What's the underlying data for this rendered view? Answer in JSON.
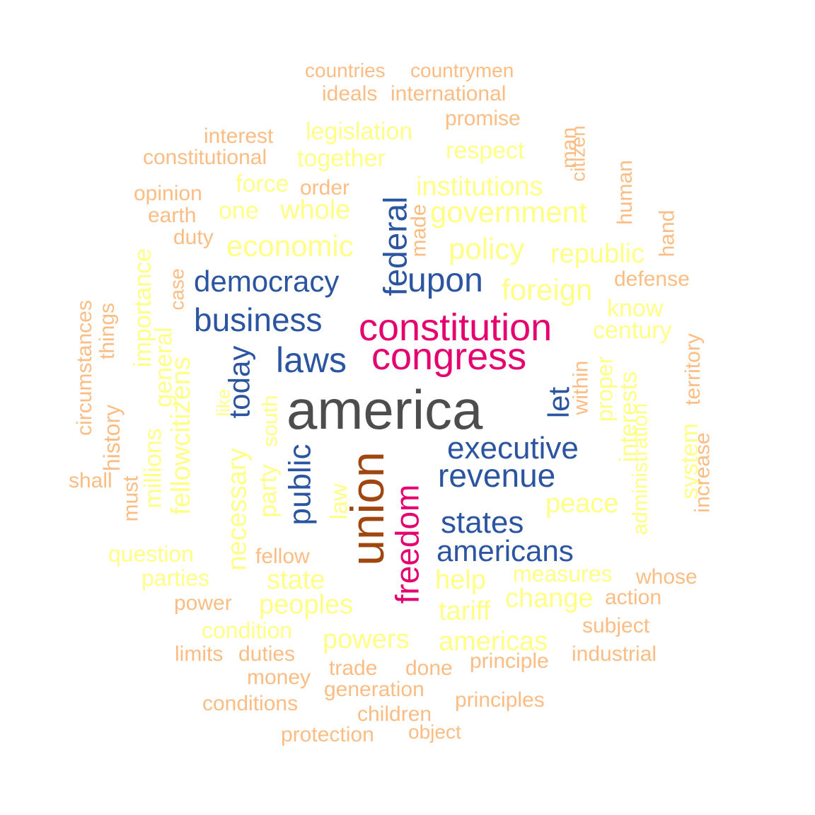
{
  "colors": {
    "c1": "#4d4d4d",
    "c2": "#a0460f",
    "c3": "#e4006e",
    "c4": "#2b55a0",
    "c5": "#ffff85",
    "c6": "#fbbd84"
  },
  "words": {
    "america": "america",
    "union": "union",
    "constitution": "constitution",
    "congress": "congress",
    "freedom": "freedom",
    "federal": "federal",
    "upon": "upon",
    "democracy": "democracy",
    "business": "business",
    "laws": "laws",
    "today": "today",
    "public": "public",
    "let": "let",
    "executive": "executive",
    "revenue": "revenue",
    "states": "states",
    "americans": "americans",
    "countries": "countries",
    "countrymen": "countrymen",
    "ideals": "ideals",
    "international": "international",
    "promise": "promise",
    "interest": "interest",
    "legislation": "legislation",
    "constitutional": "constitutional",
    "together": "together",
    "respect": "respect",
    "man": "man",
    "citizen": "citizen",
    "human": "human",
    "opinion": "opinion",
    "force": "force",
    "order": "order",
    "institutions": "institutions",
    "earth": "earth",
    "one": "one",
    "whole": "whole",
    "government": "government",
    "made": "made",
    "hand": "hand",
    "duty": "duty",
    "economic": "economic",
    "policy": "policy",
    "republic": "republic",
    "defense": "defense",
    "case": "case",
    "importance": "importance",
    "foreign": "foreign",
    "know": "know",
    "circumstances": "circumstances",
    "things": "things",
    "century": "century",
    "territory": "territory",
    "general": "general",
    "fellowcitizens": "fellowcitizens",
    "within": "within",
    "proper": "proper",
    "interests": "interests",
    "like": "like",
    "south": "south",
    "history": "history",
    "millions": "millions",
    "administration": "administration",
    "system": "system",
    "increase": "increase",
    "necessary": "necessary",
    "party": "party",
    "law": "law",
    "shall": "shall",
    "must": "must",
    "peace": "peace",
    "question": "question",
    "fellow": "fellow",
    "measures": "measures",
    "whose": "whose",
    "parties": "parties",
    "state": "state",
    "help": "help",
    "change": "change",
    "power": "power",
    "peoples": "peoples",
    "tariff": "tariff",
    "action": "action",
    "condition": "condition",
    "subject": "subject",
    "powers": "powers",
    "americas": "americas",
    "limits": "limits",
    "duties": "duties",
    "industrial": "industrial",
    "trade": "trade",
    "done": "done",
    "principle": "principle",
    "money": "money",
    "generation": "generation",
    "conditions": "conditions",
    "principles": "principles",
    "children": "children",
    "protection": "protection",
    "object": "object"
  }
}
